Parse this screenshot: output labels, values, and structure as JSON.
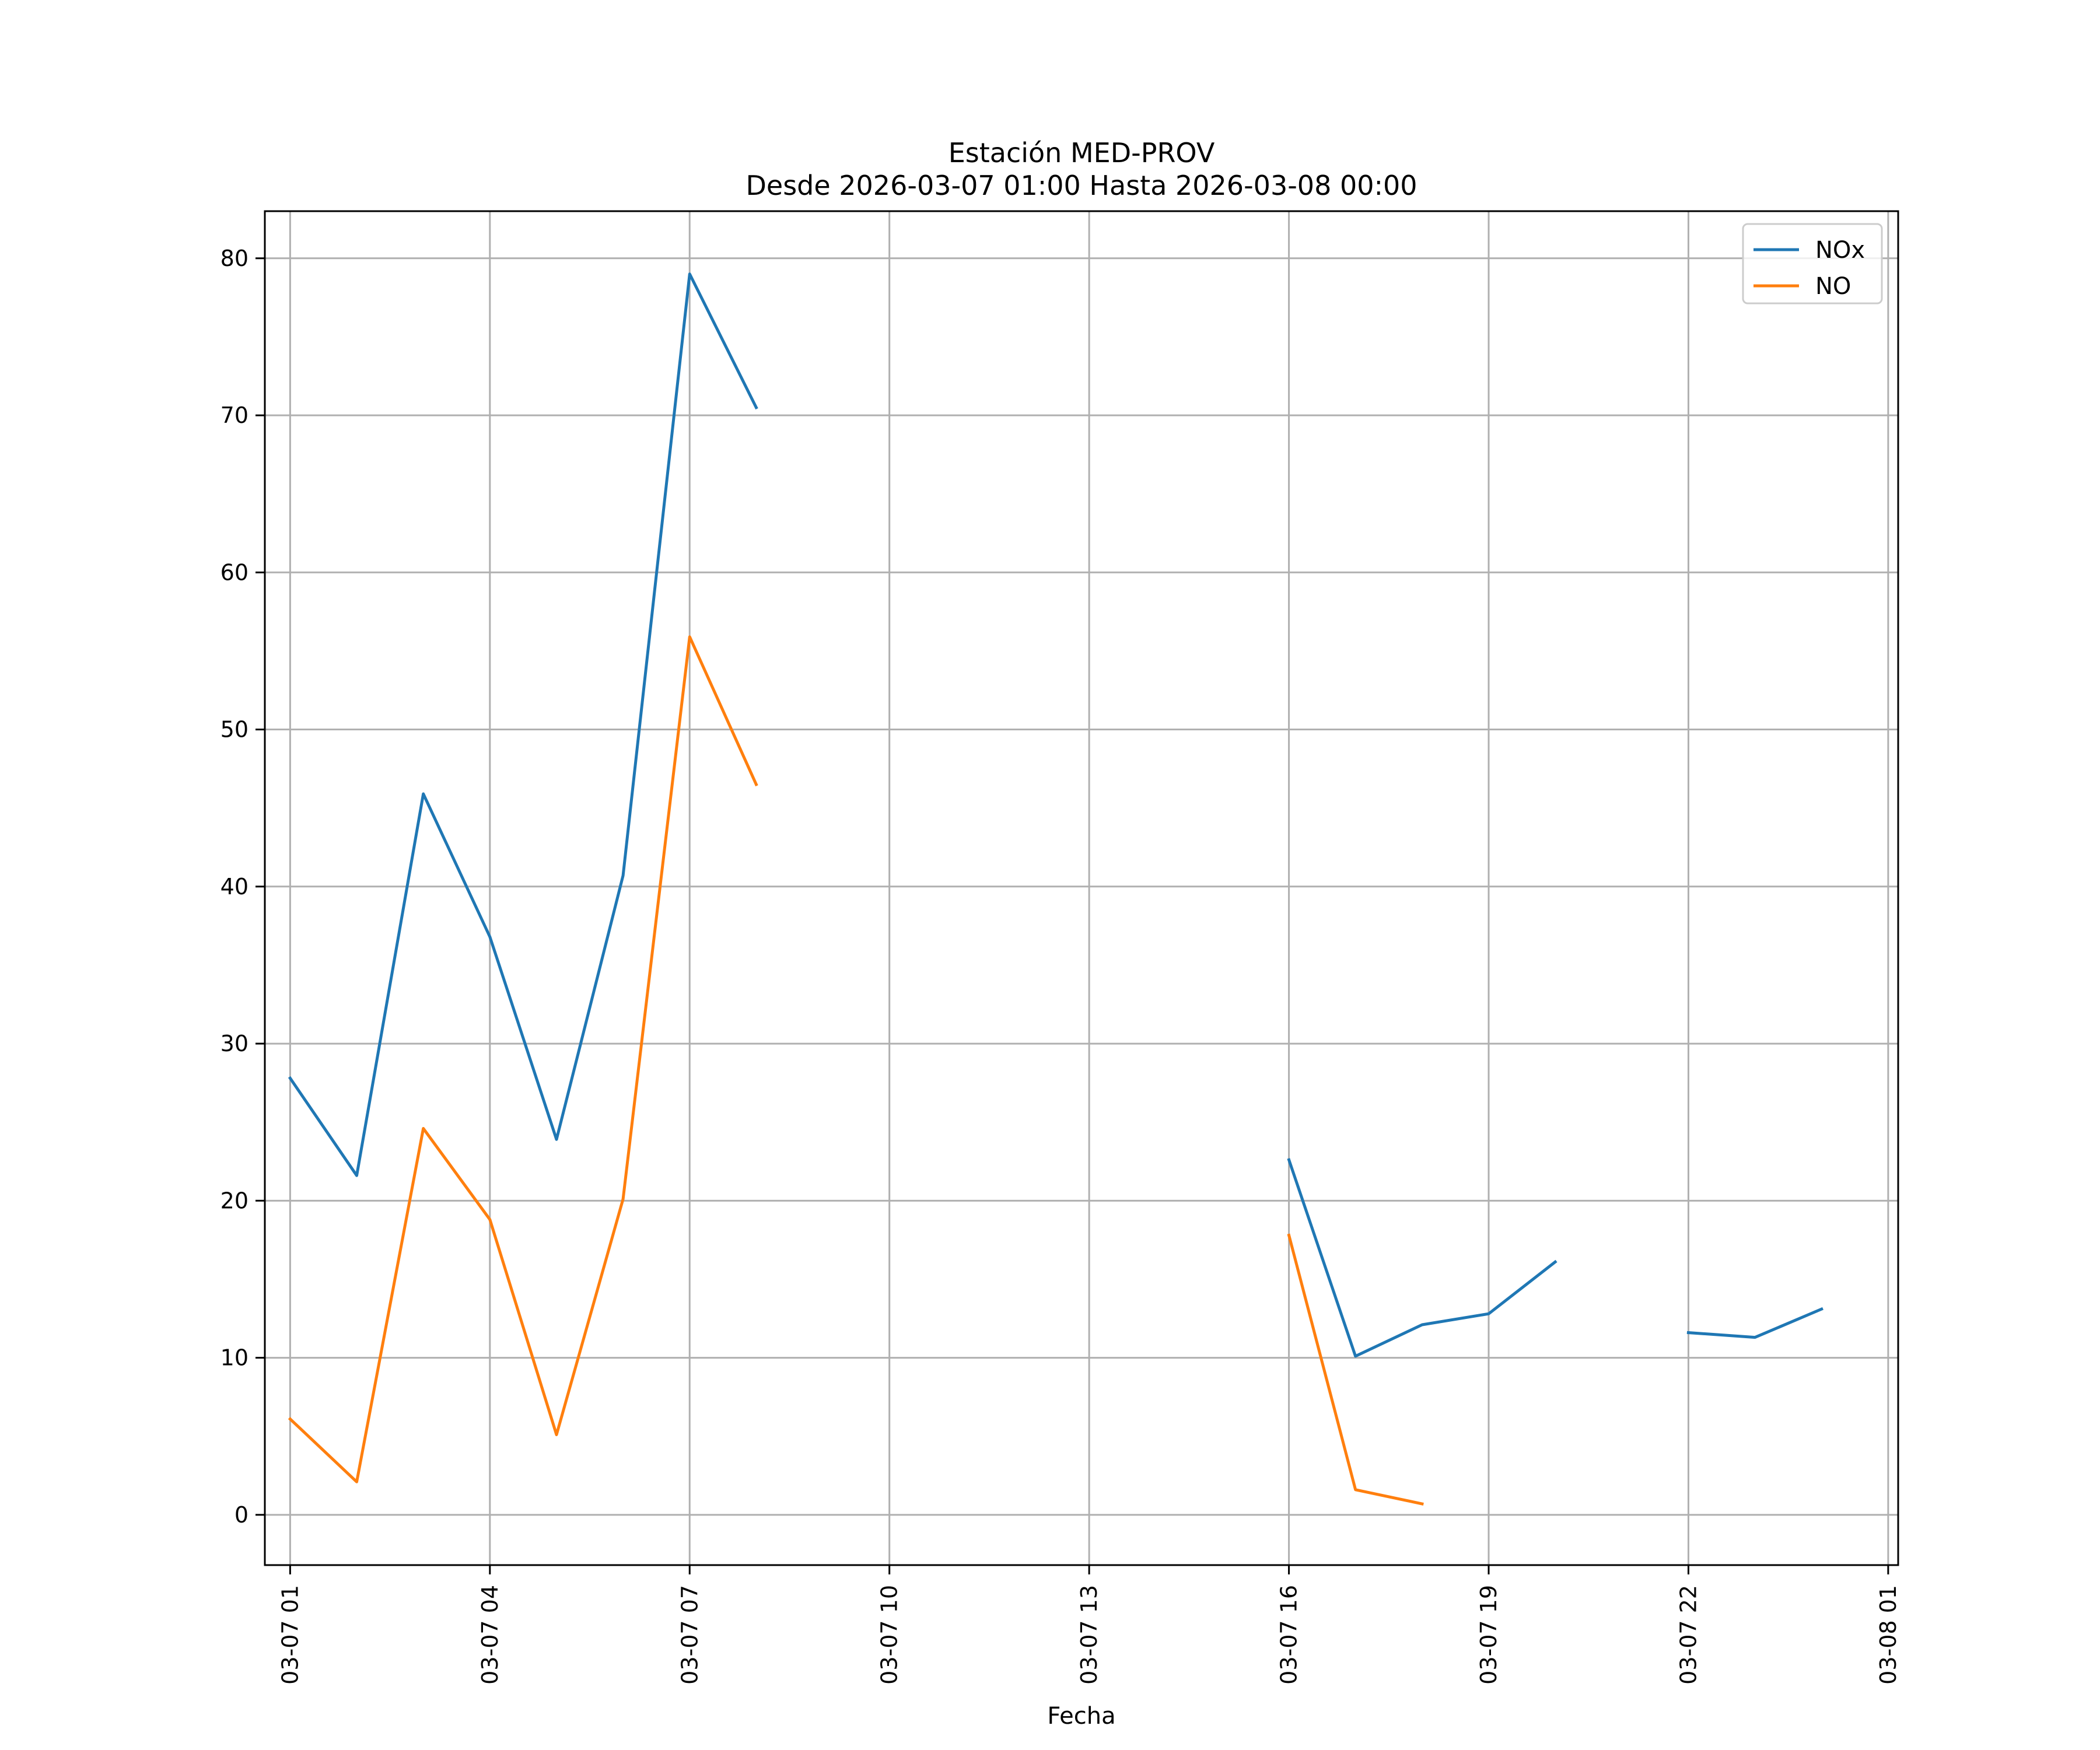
{
  "chart_data": {
    "type": "line",
    "title": "Estación MED-PROV",
    "subtitle": "Desde 2026-03-07 01:00 Hasta 2026-03-08 00:00",
    "xlabel": "Fecha",
    "ylabel": "",
    "x_unit": "hours since 2026-03-07 00:00",
    "xlim": [
      0.62,
      25.15
    ],
    "ylim": [
      -3.2,
      83.0
    ],
    "xticks": [
      {
        "value": 1,
        "label": "03-07 01"
      },
      {
        "value": 4,
        "label": "03-07 04"
      },
      {
        "value": 7,
        "label": "03-07 07"
      },
      {
        "value": 10,
        "label": "03-07 10"
      },
      {
        "value": 13,
        "label": "03-07 13"
      },
      {
        "value": 16,
        "label": "03-07 16"
      },
      {
        "value": 19,
        "label": "03-07 19"
      },
      {
        "value": 22,
        "label": "03-07 22"
      },
      {
        "value": 25,
        "label": "03-08 01"
      }
    ],
    "yticks": [
      0,
      10,
      20,
      30,
      40,
      50,
      60,
      70,
      80
    ],
    "grid": true,
    "legend_position": "upper right",
    "x": [
      1,
      2,
      3,
      4,
      5,
      6,
      7,
      8,
      9,
      10,
      11,
      12,
      13,
      14,
      15,
      16,
      17,
      18,
      19,
      20,
      21,
      22,
      23,
      24
    ],
    "series": [
      {
        "name": "NOx",
        "color": "#1f77b4",
        "values": [
          27.8,
          21.6,
          45.9,
          36.8,
          23.9,
          40.7,
          79.0,
          70.5,
          null,
          null,
          null,
          null,
          null,
          null,
          null,
          22.6,
          10.1,
          12.1,
          12.8,
          16.1,
          null,
          11.6,
          11.3,
          13.1
        ]
      },
      {
        "name": "NO",
        "color": "#ff7f0e",
        "values": [
          6.1,
          2.1,
          24.6,
          18.8,
          5.1,
          20.1,
          55.9,
          46.5,
          null,
          null,
          null,
          null,
          null,
          null,
          null,
          17.8,
          1.6,
          0.7,
          null,
          null,
          null,
          null,
          null,
          null
        ]
      }
    ]
  }
}
